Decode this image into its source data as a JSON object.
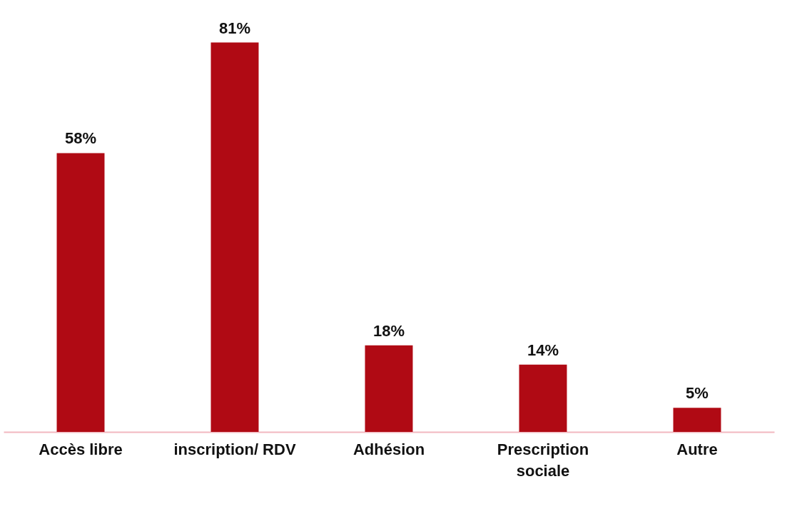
{
  "chart_data": {
    "type": "bar",
    "categories": [
      "Accès libre",
      "inscription/ RDV",
      "Adhésion",
      "Prescription\nsociale",
      "Autre"
    ],
    "values": [
      58,
      81,
      18,
      14,
      5
    ],
    "value_labels": [
      "58%",
      "81%",
      "18%",
      "14%",
      "5%"
    ],
    "color": "#b00a14"
  }
}
